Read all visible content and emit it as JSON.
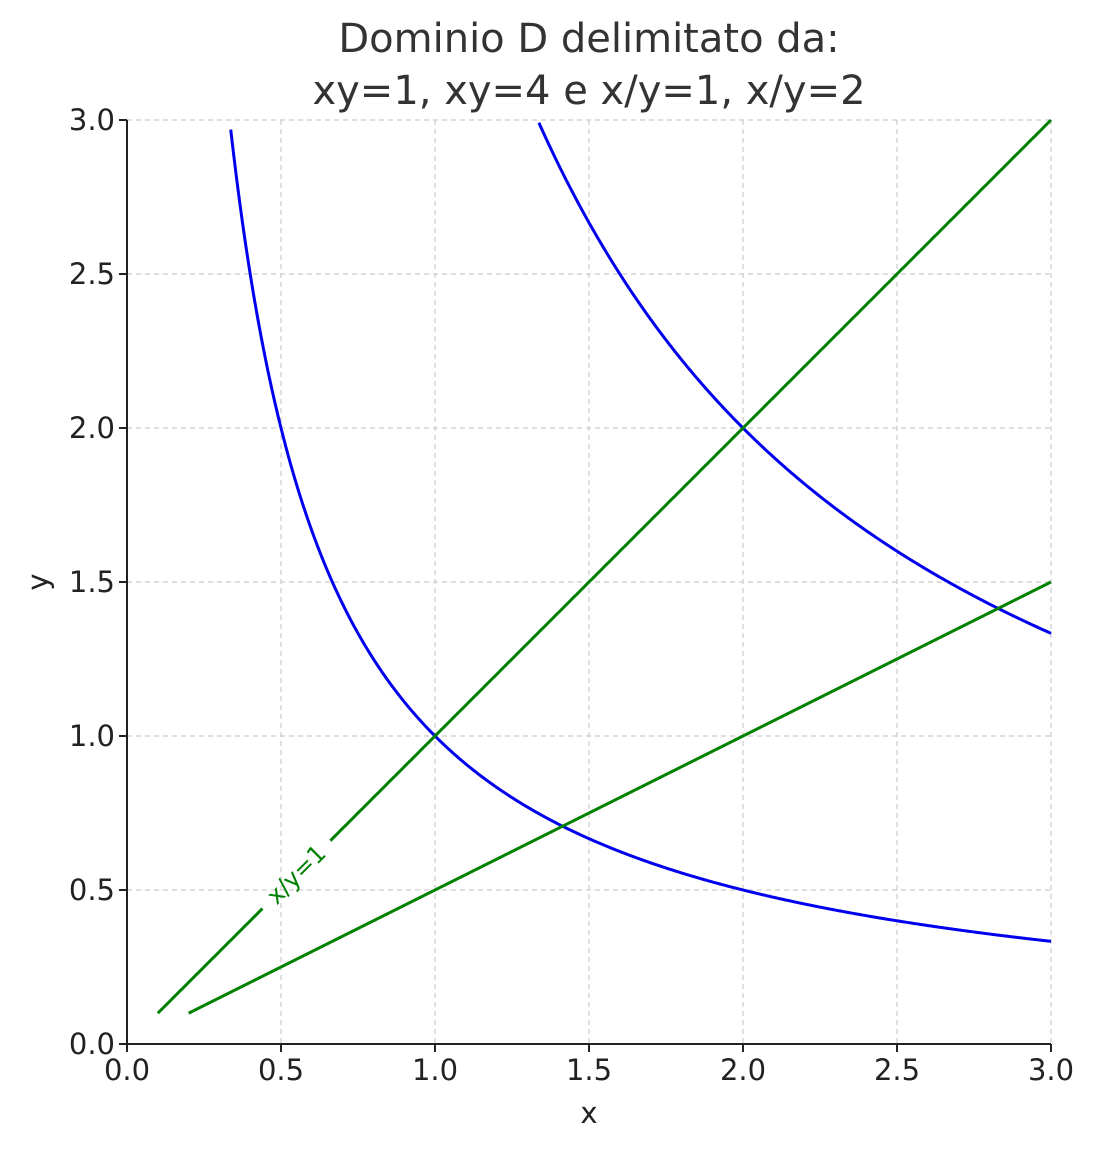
{
  "chart_data": {
    "type": "line",
    "title": [
      "Dominio D delimitato da:",
      "xy=1, xy=4 e x/y=1, x/y=2"
    ],
    "xlabel": "x",
    "ylabel": "y",
    "xlim": [
      0,
      3
    ],
    "ylim": [
      0,
      3
    ],
    "xticks": [
      "0.0",
      "0.5",
      "1.0",
      "1.5",
      "2.0",
      "2.5",
      "3.0"
    ],
    "yticks": [
      "0.0",
      "0.5",
      "1.0",
      "1.5",
      "2.0",
      "2.5",
      "3.0"
    ],
    "grid": true,
    "series": [
      {
        "kind": "curve",
        "equation": "y = 1/x",
        "color": "#0000ee",
        "x_range": [
          0.1,
          3
        ]
      },
      {
        "kind": "curve",
        "equation": "y = 4/x",
        "color": "#0000ee",
        "x_range": [
          0.1,
          3
        ]
      },
      {
        "kind": "line",
        "equation": "y = x",
        "color": "#008000",
        "x_range": [
          0.1,
          3
        ]
      },
      {
        "kind": "line",
        "equation": "y = x/2",
        "color": "#008000",
        "x_range": [
          0.2,
          3
        ]
      }
    ],
    "annotations": [
      {
        "text": "x/y=1",
        "x": 0.55,
        "y": 0.55,
        "color": "#008000",
        "on_series": 2
      }
    ]
  }
}
